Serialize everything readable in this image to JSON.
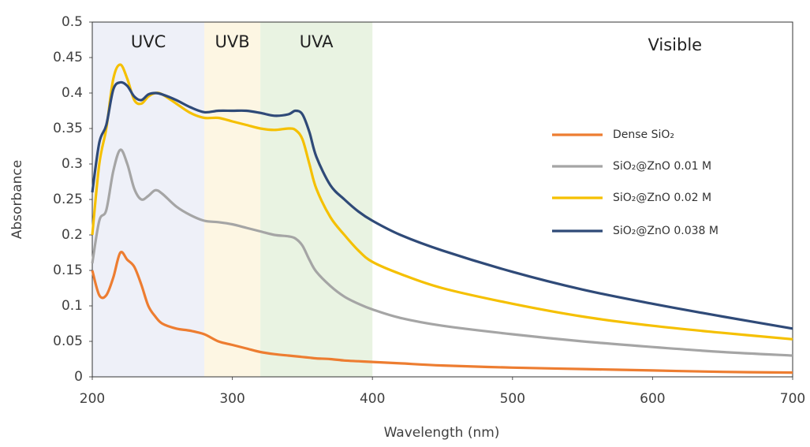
{
  "chart_data": {
    "type": "line",
    "xlabel": "Wavelength (nm)",
    "ylabel": "Absorbance",
    "xlim": [
      200,
      700
    ],
    "ylim": [
      0,
      0.5
    ],
    "xticks": [
      200,
      300,
      400,
      500,
      600,
      700
    ],
    "yticks": [
      0,
      0.05,
      0.1,
      0.15,
      0.2,
      0.25,
      0.3,
      0.35,
      0.4,
      0.45,
      0.5
    ],
    "legend": "right",
    "regions": [
      {
        "label": "UVC",
        "start": 200,
        "end": 280,
        "color": "#eef0f8"
      },
      {
        "label": "UVB",
        "start": 280,
        "end": 320,
        "color": "#fdf6e3"
      },
      {
        "label": "UVA",
        "start": 320,
        "end": 400,
        "color": "#e9f3e2"
      },
      {
        "label": "Visible",
        "start": 400,
        "end": 700
      }
    ],
    "x": [
      200,
      205,
      210,
      215,
      220,
      225,
      230,
      235,
      240,
      245,
      250,
      260,
      270,
      280,
      290,
      300,
      310,
      320,
      330,
      340,
      345,
      350,
      355,
      360,
      370,
      380,
      390,
      400,
      420,
      450,
      500,
      550,
      600,
      650,
      700
    ],
    "series": [
      {
        "name": "Dense SiO₂",
        "color": "#ed7d31",
        "values": [
          0.15,
          0.115,
          0.115,
          0.14,
          0.175,
          0.165,
          0.155,
          0.13,
          0.1,
          0.085,
          0.075,
          0.068,
          0.065,
          0.06,
          0.05,
          0.045,
          0.04,
          0.035,
          0.032,
          0.03,
          0.029,
          0.028,
          0.027,
          0.026,
          0.025,
          0.023,
          0.022,
          0.021,
          0.019,
          0.016,
          0.013,
          0.011,
          0.009,
          0.007,
          0.006
        ]
      },
      {
        "name": "SiO₂@ZnO 0.01 M",
        "color": "#a5a5a5",
        "values": [
          0.16,
          0.22,
          0.235,
          0.29,
          0.32,
          0.3,
          0.265,
          0.25,
          0.255,
          0.263,
          0.258,
          0.24,
          0.228,
          0.22,
          0.218,
          0.215,
          0.21,
          0.205,
          0.2,
          0.198,
          0.195,
          0.185,
          0.165,
          0.148,
          0.128,
          0.113,
          0.103,
          0.095,
          0.083,
          0.072,
          0.06,
          0.05,
          0.042,
          0.035,
          0.03
        ]
      },
      {
        "name": "SiO₂@ZnO 0.02 M",
        "color": "#f5c000",
        "values": [
          0.2,
          0.3,
          0.35,
          0.42,
          0.44,
          0.42,
          0.39,
          0.385,
          0.395,
          0.4,
          0.398,
          0.385,
          0.372,
          0.365,
          0.365,
          0.36,
          0.355,
          0.35,
          0.348,
          0.35,
          0.348,
          0.335,
          0.3,
          0.265,
          0.225,
          0.2,
          0.178,
          0.162,
          0.145,
          0.125,
          0.103,
          0.085,
          0.072,
          0.062,
          0.053
        ]
      },
      {
        "name": "SiO₂@ZnO 0.038 M",
        "color": "#2f4a78",
        "values": [
          0.26,
          0.33,
          0.355,
          0.405,
          0.415,
          0.41,
          0.395,
          0.39,
          0.398,
          0.4,
          0.398,
          0.39,
          0.38,
          0.373,
          0.375,
          0.375,
          0.375,
          0.372,
          0.368,
          0.37,
          0.375,
          0.37,
          0.345,
          0.31,
          0.27,
          0.25,
          0.233,
          0.22,
          0.2,
          0.178,
          0.148,
          0.123,
          0.103,
          0.085,
          0.068
        ]
      }
    ]
  }
}
